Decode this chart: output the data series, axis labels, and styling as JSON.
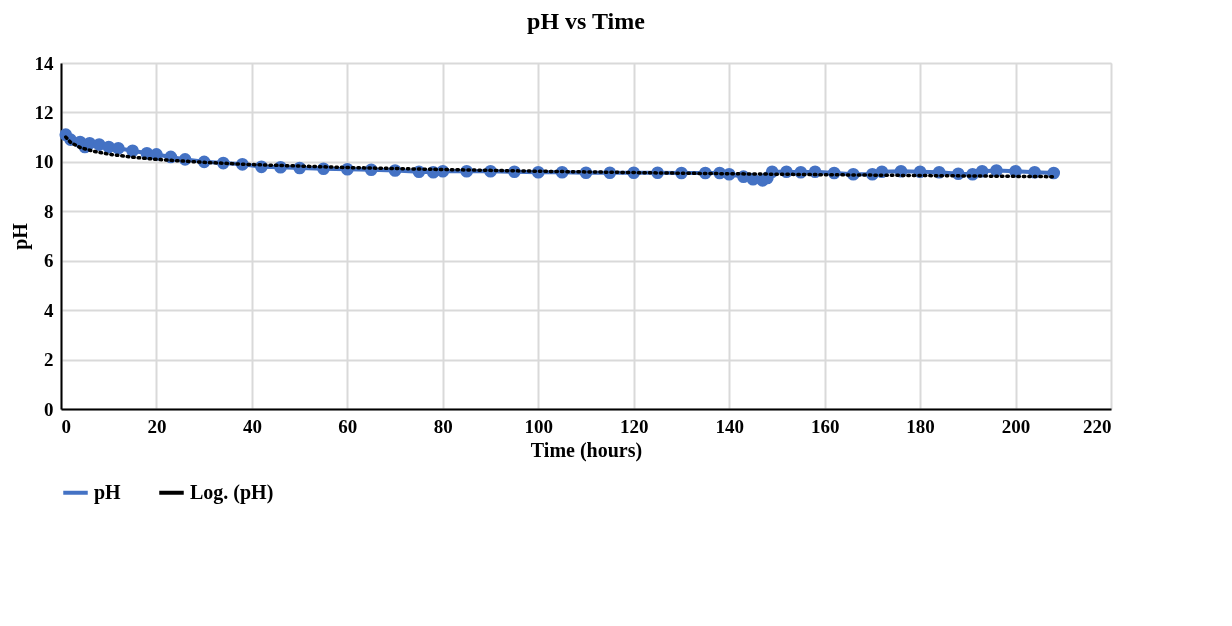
{
  "chart_data": {
    "type": "line",
    "title": "pH vs Time",
    "xlabel": "Time (hours)",
    "ylabel": "pH",
    "xlim": [
      0,
      220
    ],
    "xticks": [
      0,
      20,
      40,
      60,
      80,
      100,
      120,
      140,
      160,
      180,
      200,
      220
    ],
    "ylim": [
      0,
      14
    ],
    "yticks": [
      0,
      2,
      4,
      6,
      8,
      10,
      12,
      14
    ],
    "grid": true,
    "legend": "bottom",
    "series": [
      {
        "name": "pH",
        "color": "#4472c4",
        "marker": "circle",
        "line_style": "solid",
        "x": [
          1,
          2,
          4,
          5,
          6,
          8,
          10,
          12,
          15,
          18,
          20,
          23,
          26,
          30,
          34,
          38,
          42,
          46,
          50,
          55,
          60,
          65,
          70,
          75,
          78,
          80,
          85,
          90,
          95,
          100,
          105,
          110,
          115,
          120,
          125,
          130,
          135,
          138,
          140,
          143,
          145,
          147,
          148,
          149,
          152,
          155,
          158,
          162,
          166,
          170,
          172,
          176,
          180,
          184,
          188,
          191,
          193,
          196,
          200,
          204,
          208
        ],
        "values": [
          11.1,
          10.9,
          10.8,
          10.6,
          10.75,
          10.7,
          10.6,
          10.55,
          10.45,
          10.35,
          10.3,
          10.2,
          10.1,
          10.0,
          9.95,
          9.9,
          9.8,
          9.78,
          9.75,
          9.72,
          9.7,
          9.68,
          9.65,
          9.6,
          9.58,
          9.62,
          9.62,
          9.62,
          9.6,
          9.58,
          9.58,
          9.56,
          9.56,
          9.56,
          9.56,
          9.55,
          9.55,
          9.55,
          9.5,
          9.4,
          9.3,
          9.25,
          9.35,
          9.6,
          9.6,
          9.58,
          9.6,
          9.55,
          9.5,
          9.5,
          9.6,
          9.62,
          9.6,
          9.58,
          9.52,
          9.5,
          9.62,
          9.65,
          9.62,
          9.58,
          9.55
        ]
      },
      {
        "name": "Log. (pH)",
        "color": "#000000",
        "type": "line",
        "marker": "none",
        "line_style": "dotted",
        "x": [
          1,
          2,
          4,
          7,
          10,
          15,
          20,
          30,
          40,
          60,
          80,
          100,
          130,
          160,
          190,
          208
        ],
        "values": [
          11.0,
          10.79,
          10.58,
          10.42,
          10.31,
          10.19,
          10.1,
          9.98,
          9.89,
          9.77,
          9.69,
          9.62,
          9.54,
          9.48,
          9.43,
          9.4
        ]
      }
    ]
  }
}
